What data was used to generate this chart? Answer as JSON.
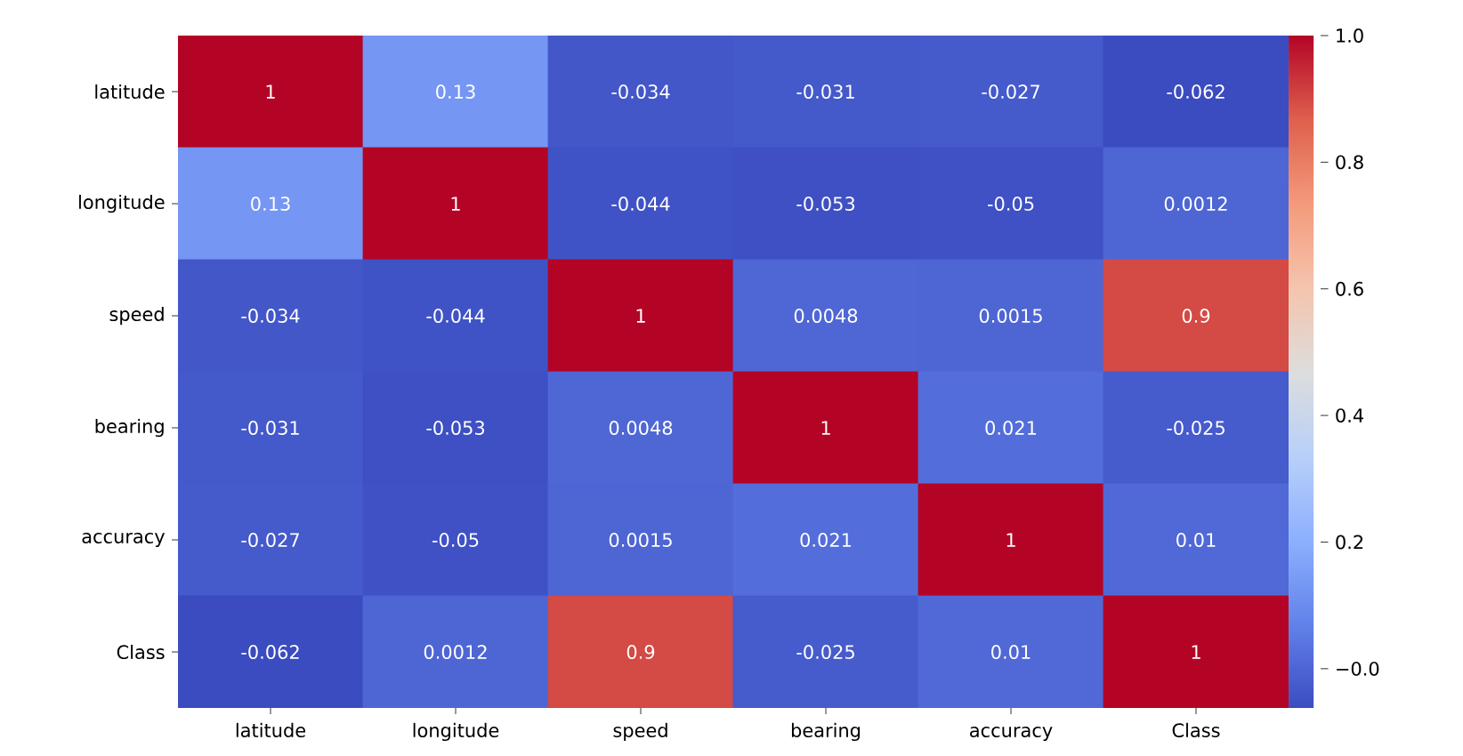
{
  "chart_data": {
    "type": "heatmap",
    "categories": [
      "latitude",
      "longitude",
      "speed",
      "bearing",
      "accuracy",
      "Class"
    ],
    "y_categories": [
      "latitude",
      "longitude",
      "speed",
      "bearing",
      "accuracy",
      "Class"
    ],
    "cells": [
      [
        1,
        0.13,
        -0.034,
        -0.031,
        -0.027,
        -0.062
      ],
      [
        0.13,
        1,
        -0.044,
        -0.053,
        -0.05,
        0.0012
      ],
      [
        -0.034,
        -0.044,
        1,
        0.0048,
        0.0015,
        0.9
      ],
      [
        -0.031,
        -0.053,
        0.0048,
        1,
        0.021,
        -0.025
      ],
      [
        -0.027,
        -0.05,
        0.0015,
        0.021,
        1,
        0.01
      ],
      [
        -0.062,
        0.0012,
        0.9,
        -0.025,
        0.01,
        1
      ]
    ],
    "cell_labels": [
      [
        "1",
        "0.13",
        "-0.034",
        "-0.031",
        "-0.027",
        "-0.062"
      ],
      [
        "0.13",
        "1",
        "-0.044",
        "-0.053",
        "-0.05",
        "0.0012"
      ],
      [
        "-0.034",
        "-0.044",
        "1",
        "0.0048",
        "0.0015",
        "0.9"
      ],
      [
        "-0.031",
        "-0.053",
        "0.0048",
        "1",
        "0.021",
        "-0.025"
      ],
      [
        "-0.027",
        "-0.05",
        "0.0015",
        "0.021",
        "1",
        "0.01"
      ],
      [
        "-0.062",
        "0.0012",
        "0.9",
        "-0.025",
        "0.01",
        "1"
      ]
    ],
    "clim": [
      -0.062,
      1
    ],
    "cticks": [
      {
        "value": 0,
        "label": "−0.0"
      },
      0.2,
      0.4,
      0.6,
      0.8,
      {
        "value": 1.0,
        "label": "1.0"
      }
    ]
  }
}
